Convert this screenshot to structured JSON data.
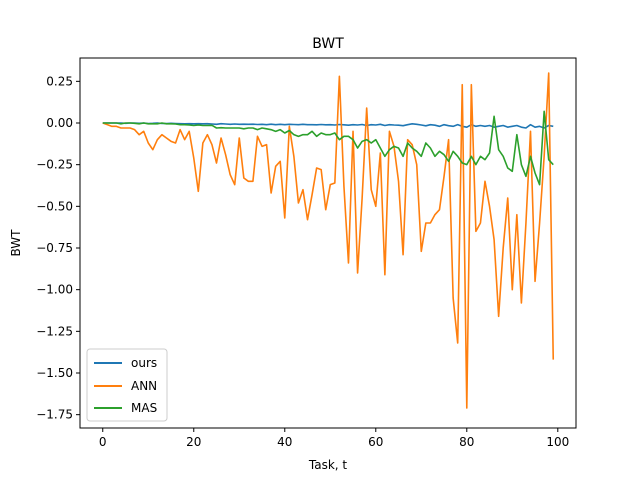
{
  "chart_data": {
    "type": "line",
    "title": "BWT",
    "xlabel": "Task, t",
    "ylabel": "BWT",
    "xlim": [
      -5,
      104
    ],
    "ylim": [
      -1.83,
      0.39
    ],
    "xticks": [
      0,
      20,
      40,
      60,
      80,
      100
    ],
    "yticks": [
      0.25,
      0.0,
      -0.25,
      -0.5,
      -0.75,
      -1.0,
      -1.25,
      -1.5,
      -1.75
    ],
    "ytick_labels": [
      "0.25",
      "0.00",
      "−0.25",
      "−0.50",
      "−0.75",
      "−1.00",
      "−1.25",
      "−1.50",
      "−1.75"
    ],
    "grid": false,
    "legend_position": "lower-left",
    "x": [
      0,
      1,
      2,
      3,
      4,
      5,
      6,
      7,
      8,
      9,
      10,
      11,
      12,
      13,
      14,
      15,
      16,
      17,
      18,
      19,
      20,
      21,
      22,
      23,
      24,
      25,
      26,
      27,
      28,
      29,
      30,
      31,
      32,
      33,
      34,
      35,
      36,
      37,
      38,
      39,
      40,
      41,
      42,
      43,
      44,
      45,
      46,
      47,
      48,
      49,
      50,
      51,
      52,
      53,
      54,
      55,
      56,
      57,
      58,
      59,
      60,
      61,
      62,
      63,
      64,
      65,
      66,
      67,
      68,
      69,
      70,
      71,
      72,
      73,
      74,
      75,
      76,
      77,
      78,
      79,
      80,
      81,
      82,
      83,
      84,
      85,
      86,
      87,
      88,
      89,
      90,
      91,
      92,
      93,
      94,
      95,
      96,
      97,
      98,
      99
    ],
    "series": [
      {
        "name": "ours",
        "color": "#1f77b4",
        "values": [
          0.0,
          0.0,
          0.0,
          0.0,
          0.0,
          -0.002,
          0.0,
          0.0,
          -0.002,
          0.0,
          -0.003,
          -0.002,
          0.0,
          -0.003,
          -0.003,
          -0.002,
          -0.003,
          -0.004,
          -0.005,
          -0.004,
          -0.005,
          -0.004,
          -0.005,
          -0.004,
          -0.006,
          -0.008,
          -0.004,
          -0.006,
          -0.008,
          -0.006,
          -0.008,
          -0.007,
          -0.008,
          -0.007,
          -0.009,
          -0.008,
          -0.01,
          -0.007,
          -0.01,
          -0.008,
          -0.01,
          -0.008,
          -0.009,
          -0.01,
          -0.008,
          -0.01,
          -0.01,
          -0.011,
          -0.009,
          -0.011,
          -0.01,
          -0.012,
          -0.009,
          -0.011,
          -0.013,
          -0.01,
          -0.012,
          -0.009,
          -0.015,
          -0.01,
          -0.012,
          -0.008,
          -0.015,
          -0.01,
          -0.012,
          -0.013,
          -0.016,
          -0.01,
          -0.005,
          -0.008,
          -0.012,
          -0.017,
          -0.01,
          -0.013,
          -0.02,
          -0.01,
          -0.016,
          -0.02,
          -0.01,
          -0.02,
          -0.025,
          -0.01,
          -0.02,
          -0.015,
          -0.02,
          -0.015,
          -0.025,
          -0.02,
          -0.015,
          -0.025,
          -0.02,
          -0.015,
          -0.025,
          -0.03,
          -0.01,
          -0.025,
          -0.02,
          -0.03,
          -0.015,
          -0.02
        ]
      },
      {
        "name": "ANN",
        "color": "#ff7f0e",
        "values": [
          0.0,
          -0.01,
          -0.02,
          -0.02,
          -0.03,
          -0.03,
          -0.03,
          -0.04,
          -0.07,
          -0.05,
          -0.12,
          -0.16,
          -0.1,
          -0.07,
          -0.09,
          -0.11,
          -0.12,
          -0.04,
          -0.1,
          -0.05,
          -0.21,
          -0.41,
          -0.12,
          -0.07,
          -0.13,
          -0.24,
          -0.09,
          -0.19,
          -0.31,
          -0.37,
          -0.09,
          -0.33,
          -0.35,
          -0.35,
          -0.08,
          -0.14,
          -0.13,
          -0.42,
          -0.26,
          -0.23,
          -0.57,
          -0.02,
          -0.2,
          -0.48,
          -0.4,
          -0.58,
          -0.43,
          -0.27,
          -0.28,
          -0.52,
          -0.37,
          -0.36,
          0.28,
          -0.38,
          -0.84,
          -0.05,
          -0.9,
          -0.45,
          0.09,
          -0.4,
          -0.5,
          -0.18,
          -0.91,
          -0.05,
          -0.14,
          -0.35,
          -0.79,
          -0.1,
          -0.13,
          -0.25,
          -0.77,
          -0.6,
          -0.6,
          -0.55,
          -0.52,
          -0.32,
          -0.1,
          -1.05,
          -1.32,
          0.23,
          -1.71,
          0.23,
          -0.65,
          -0.6,
          -0.35,
          -0.5,
          -0.7,
          -1.16,
          -0.75,
          -0.45,
          -1.0,
          -0.55,
          -1.08,
          -0.6,
          -0.05,
          -0.95,
          -0.6,
          -0.2,
          0.3,
          -1.42
        ]
      },
      {
        "name": "MAS",
        "color": "#2ca02c",
        "values": [
          0.0,
          0.0,
          0.0,
          0.0,
          -0.005,
          0.0,
          0.0,
          -0.002,
          -0.005,
          0.0,
          -0.005,
          -0.005,
          -0.005,
          0.0,
          -0.005,
          -0.005,
          -0.006,
          -0.01,
          -0.01,
          -0.012,
          -0.015,
          -0.012,
          -0.015,
          -0.015,
          -0.014,
          -0.03,
          -0.028,
          -0.03,
          -0.03,
          -0.03,
          -0.03,
          -0.035,
          -0.03,
          -0.03,
          -0.04,
          -0.03,
          -0.035,
          -0.04,
          -0.05,
          -0.04,
          -0.06,
          -0.045,
          -0.07,
          -0.08,
          -0.07,
          -0.07,
          -0.05,
          -0.08,
          -0.06,
          -0.07,
          -0.07,
          -0.06,
          -0.1,
          -0.08,
          -0.08,
          -0.1,
          -0.15,
          -0.11,
          -0.1,
          -0.12,
          -0.1,
          -0.15,
          -0.2,
          -0.16,
          -0.14,
          -0.15,
          -0.2,
          -0.12,
          -0.15,
          -0.17,
          -0.2,
          -0.12,
          -0.15,
          -0.2,
          -0.17,
          -0.19,
          -0.23,
          -0.17,
          -0.2,
          -0.24,
          -0.25,
          -0.2,
          -0.25,
          -0.2,
          -0.22,
          -0.18,
          0.04,
          -0.16,
          -0.2,
          -0.27,
          -0.29,
          -0.07,
          -0.25,
          -0.32,
          -0.2,
          -0.3,
          -0.37,
          0.07,
          -0.22,
          -0.25
        ]
      }
    ]
  }
}
